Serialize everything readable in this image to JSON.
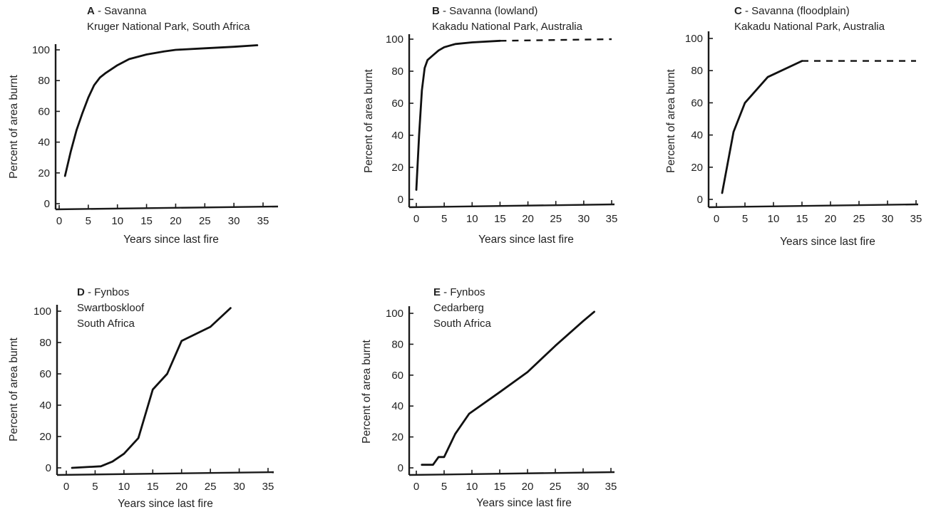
{
  "chart_data": [
    {
      "type": "line",
      "panel_label": "A",
      "title": "- Savanna",
      "subtitle": [
        "Kruger National Park, South Africa"
      ],
      "xlabel": "Years since last fire",
      "ylabel": "Percent of area burnt",
      "xlim": [
        0,
        35
      ],
      "ylim": [
        0,
        100
      ],
      "xticks": [
        0,
        5,
        10,
        15,
        20,
        25,
        30,
        35
      ],
      "yticks": [
        0,
        20,
        40,
        60,
        80,
        100
      ],
      "series": [
        {
          "style": "solid",
          "x": [
            1,
            2,
            3,
            4,
            5,
            6,
            7,
            8,
            10,
            12,
            15,
            18,
            20,
            25,
            30,
            34
          ],
          "y": [
            18,
            34,
            48,
            59,
            69,
            77,
            82,
            85,
            90,
            94,
            97,
            99,
            100,
            101,
            102,
            103
          ]
        }
      ]
    },
    {
      "type": "line",
      "panel_label": "B",
      "title": "- Savanna (lowland)",
      "subtitle": [
        "Kakadu National Park, Australia"
      ],
      "xlabel": "Years since last fire",
      "ylabel": "Percent of area burnt",
      "xlim": [
        0,
        35
      ],
      "ylim": [
        0,
        100
      ],
      "xticks": [
        0,
        5,
        10,
        15,
        20,
        25,
        30,
        35
      ],
      "yticks": [
        0,
        20,
        40,
        60,
        80,
        100
      ],
      "series": [
        {
          "style": "solid",
          "x": [
            0,
            0.5,
            1,
            1.5,
            2,
            3,
            4,
            5,
            7,
            10,
            15
          ],
          "y": [
            6,
            40,
            68,
            82,
            87,
            90,
            93,
            95,
            97,
            98,
            99
          ]
        },
        {
          "style": "dashed",
          "x": [
            15,
            35
          ],
          "y": [
            99,
            100
          ]
        }
      ]
    },
    {
      "type": "line",
      "panel_label": "C",
      "title": "- Savanna (floodplain)",
      "subtitle": [
        "Kakadu National Park, Australia"
      ],
      "xlabel": "Years since last fire",
      "ylabel": "Percent of area burnt",
      "xlim": [
        0,
        35
      ],
      "ylim": [
        0,
        100
      ],
      "xticks": [
        0,
        5,
        10,
        15,
        20,
        25,
        30,
        35
      ],
      "yticks": [
        0,
        20,
        40,
        60,
        80,
        100
      ],
      "series": [
        {
          "style": "solid",
          "x": [
            1,
            3,
            5,
            9,
            15
          ],
          "y": [
            4,
            42,
            60,
            76,
            86
          ]
        },
        {
          "style": "dashed",
          "x": [
            15,
            35
          ],
          "y": [
            86,
            86
          ]
        }
      ]
    },
    {
      "type": "line",
      "panel_label": "D",
      "title": "- Fynbos",
      "subtitle": [
        "Swartboskloof",
        "South Africa"
      ],
      "xlabel": "Years since last fire",
      "ylabel": "Percent of area burnt",
      "xlim": [
        0,
        35
      ],
      "ylim": [
        0,
        100
      ],
      "xticks": [
        0,
        5,
        10,
        15,
        20,
        25,
        30,
        35
      ],
      "yticks": [
        0,
        20,
        40,
        60,
        80,
        100
      ],
      "series": [
        {
          "style": "solid",
          "x": [
            1,
            6,
            8,
            10,
            12.5,
            15,
            17.5,
            20,
            25,
            28.5
          ],
          "y": [
            0,
            1,
            4,
            9,
            19,
            50,
            60,
            81,
            90,
            102
          ]
        }
      ]
    },
    {
      "type": "line",
      "panel_label": "E",
      "title": "- Fynbos",
      "subtitle": [
        "Cedarberg",
        "South Africa"
      ],
      "xlabel": "Years since last fire",
      "ylabel": "Percent of area burnt",
      "xlim": [
        0,
        35
      ],
      "ylim": [
        0,
        100
      ],
      "xticks": [
        0,
        5,
        10,
        15,
        20,
        25,
        30,
        35
      ],
      "yticks": [
        0,
        20,
        40,
        60,
        80,
        100
      ],
      "series": [
        {
          "style": "solid",
          "x": [
            1,
            3,
            4,
            5,
            7,
            9.5,
            15,
            20,
            25,
            30,
            32
          ],
          "y": [
            2,
            2,
            7,
            7,
            22,
            35,
            49,
            62,
            79,
            95,
            101
          ]
        }
      ]
    }
  ]
}
